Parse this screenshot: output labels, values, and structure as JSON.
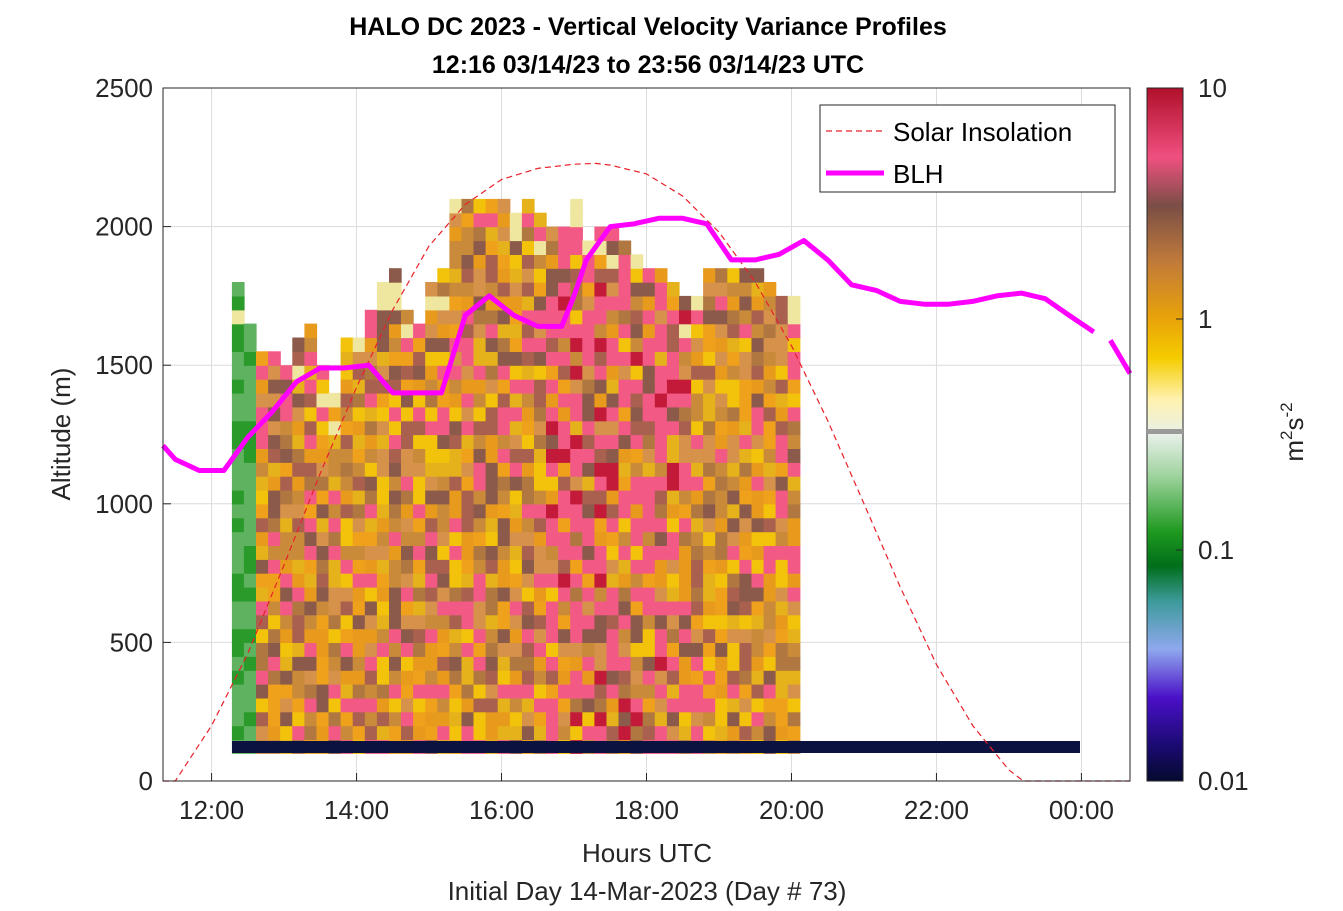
{
  "chart_data": {
    "type": "heatmap",
    "title": "HALO DC 2023 - Vertical Velocity Variance Profiles",
    "subtitle": "12:16 03/14/23 to 23:56 03/14/23  UTC",
    "xlabel": "Hours UTC",
    "xlabel2": "Initial Day 14-Mar-2023 (Day # 73)",
    "ylabel": "Altitude (m)",
    "xlim": [
      11.33,
      24.67
    ],
    "ylim": [
      0,
      2500
    ],
    "x_ticks": [
      12,
      14,
      16,
      18,
      20,
      22,
      24
    ],
    "x_tick_labels": [
      "12:00",
      "14:00",
      "16:00",
      "18:00",
      "20:00",
      "22:00",
      "00:00"
    ],
    "y_ticks": [
      0,
      500,
      1000,
      1500,
      2000,
      2500
    ],
    "y_tick_labels": [
      "0",
      "500",
      "1000",
      "1500",
      "2000",
      "2500"
    ],
    "grid": true,
    "legend_position": "top-right",
    "colorbar": {
      "scale": "log",
      "min": 0.01,
      "max": 10,
      "ticks": [
        0.01,
        0.1,
        1,
        10
      ],
      "tick_labels": [
        "0.01",
        "0.1",
        "1",
        "10"
      ],
      "label_base": "m",
      "label_exp1": "2",
      "label_mid": "s",
      "label_exp2": "-2",
      "marker_value": 0.3
    },
    "heatmap_grid": {
      "time_start": 12.28,
      "time_step": 0.1667,
      "alt_start": 100,
      "alt_step": 50,
      "columns_max_alt": [
        1800,
        1650,
        1550,
        1550,
        1500,
        1600,
        1650,
        1500,
        1400,
        1600,
        1600,
        1700,
        1800,
        1850,
        1700,
        1650,
        1800,
        1850,
        2100,
        2100,
        2100,
        2100,
        2100,
        2050,
        2100,
        2050,
        2000,
        2000,
        2100,
        1950,
        2000,
        2000,
        1950,
        1900,
        1850,
        1850,
        1800,
        1750,
        1750,
        1850,
        1850,
        1850,
        1850,
        1850,
        1800,
        1750,
        1750
      ]
    },
    "series": [
      {
        "name": "Solar Insolation",
        "style": "dashed",
        "color": "#e8202a",
        "x": [
          11.33,
          11.5,
          12.0,
          12.5,
          13.0,
          13.5,
          14.0,
          14.5,
          15.0,
          15.5,
          16.0,
          16.5,
          17.0,
          17.3,
          17.5,
          18.0,
          18.5,
          19.0,
          19.5,
          20.0,
          20.5,
          21.0,
          21.5,
          22.0,
          22.5,
          23.0,
          23.2,
          23.5,
          24.0,
          24.5,
          24.67
        ],
        "y": [
          0,
          0,
          200,
          460,
          780,
          1110,
          1420,
          1700,
          1930,
          2080,
          2170,
          2210,
          2225,
          2228,
          2222,
          2190,
          2110,
          1980,
          1800,
          1570,
          1300,
          1000,
          700,
          420,
          200,
          40,
          0,
          0,
          0,
          0,
          0
        ]
      },
      {
        "name": "BLH",
        "style": "solid",
        "color": "#ff00ff",
        "x": [
          11.33,
          11.5,
          11.83,
          12.17,
          12.5,
          12.83,
          13.17,
          13.5,
          13.83,
          14.17,
          14.5,
          14.83,
          15.17,
          15.5,
          15.83,
          16.17,
          16.5,
          16.83,
          17.0,
          17.17,
          17.5,
          17.83,
          18.17,
          18.5,
          18.83,
          19.17,
          19.5,
          19.83,
          20.17,
          20.5,
          20.83,
          21.17,
          21.5,
          21.83,
          22.17,
          22.5,
          22.83,
          23.17,
          23.5,
          23.83,
          24.17
        ],
        "y": [
          1210,
          1160,
          1120,
          1120,
          1240,
          1330,
          1440,
          1490,
          1490,
          1500,
          1400,
          1400,
          1400,
          1680,
          1750,
          1680,
          1640,
          1640,
          1750,
          1880,
          2000,
          2010,
          2030,
          2030,
          2010,
          1880,
          1880,
          1900,
          1950,
          1880,
          1790,
          1770,
          1730,
          1720,
          1720,
          1730,
          1750,
          1760,
          1740,
          1680,
          1620
        ]
      },
      {
        "name": "BLH",
        "style": "solid",
        "color": "#ff00ff",
        "x": [
          24.4,
          24.67
        ],
        "y": [
          1590,
          1470
        ]
      }
    ]
  }
}
